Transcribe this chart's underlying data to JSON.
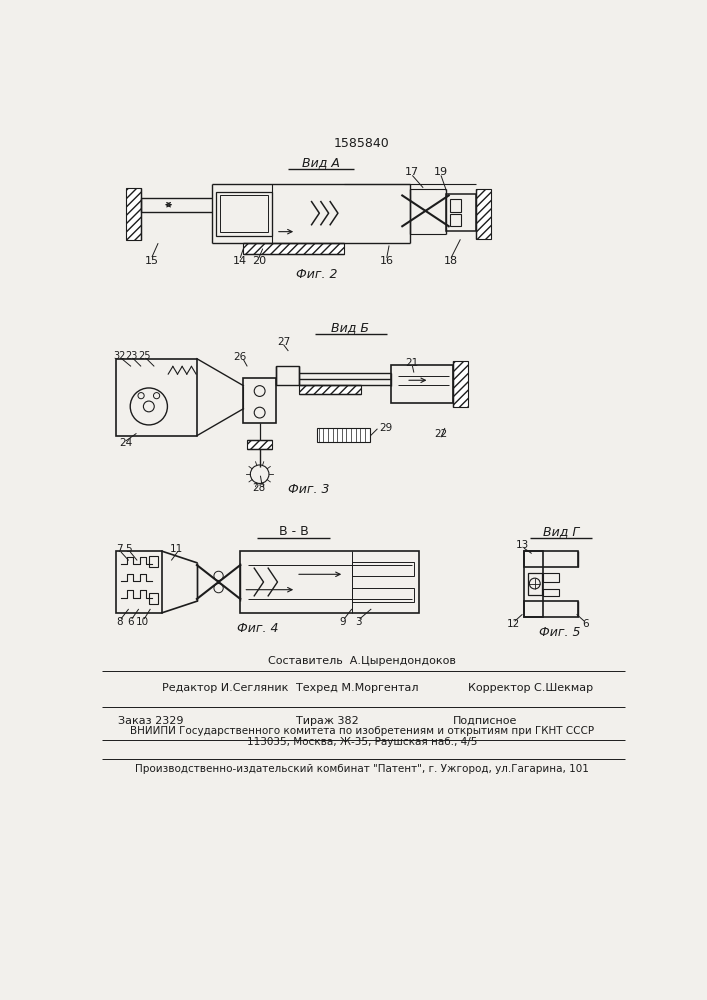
{
  "patent_number": "1585840",
  "bg": "#f2f0ec",
  "lc": "#1c1c1c",
  "vid_a": "Вид А",
  "vid_b": "Вид Б",
  "vid_v": "В - В",
  "vid_g": "Вид Г",
  "fig2": "Фиг. 2",
  "fig3": "Фиг. 3",
  "fig4": "Фиг. 4",
  "fig5": "Фиг. 5",
  "composer": "Составитель  А.Цырендондоков",
  "editor": "Редактор И.Сегляник",
  "techred": "Техред М.Моргентал",
  "korrektor": "Корректор С.Шекмар",
  "zakaz": "Заказ 2329",
  "tirazh": "Тираж 382",
  "podpisn": "Подписное",
  "vniiipi": "ВНИИПИ Государственного комитета по изобретениям и открытиям при ГКНТ СССР",
  "address": "113035, Москва, Ж-35, Раушская наб., 4/5",
  "kombinat": "Производственно-издательский комбинат \"Патент\", г. Ужгород, ул.Гагарина, 101"
}
